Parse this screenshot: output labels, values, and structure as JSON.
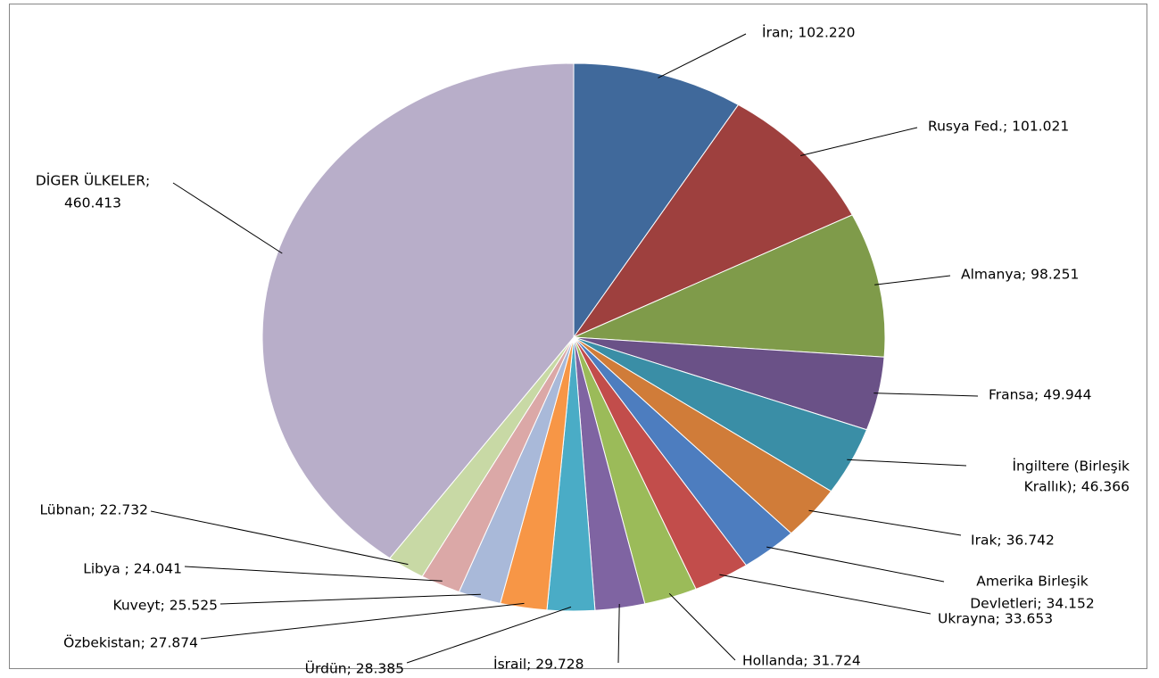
{
  "chart_data": {
    "type": "pie",
    "title": "",
    "slices": [
      {
        "name": "İran",
        "value": 102.22,
        "value_text": "102.220",
        "label": "İran; 102.220",
        "color": "#40699b"
      },
      {
        "name": "Rusya Fed.",
        "value": 101.021,
        "value_text": "101.021",
        "label": "Rusya Fed.; 101.021",
        "color": "#9e403e"
      },
      {
        "name": "Almanya",
        "value": 98.251,
        "value_text": "98.251",
        "label": "Almanya; 98.251",
        "color": "#7f9b4a"
      },
      {
        "name": "Fransa",
        "value": 49.944,
        "value_text": "49.944",
        "label": "Fransa; 49.944",
        "color": "#6a5187"
      },
      {
        "name": "İngiltere (Birleşik Krallık)",
        "value": 46.366,
        "value_text": "46.366",
        "label": [
          "İngiltere (Birleşik",
          "Krallık); 46.366"
        ],
        "color": "#3a8ea6"
      },
      {
        "name": "Irak",
        "value": 36.742,
        "value_text": "36.742",
        "label": "Irak; 36.742",
        "color": "#d07c39"
      },
      {
        "name": "Amerika Birleşik Devletleri",
        "value": 34.152,
        "value_text": "34.152",
        "label": [
          "Amerika Birleşik",
          "Devletleri; 34.152"
        ],
        "color": "#4d7dbf"
      },
      {
        "name": "Ukrayna",
        "value": 33.653,
        "value_text": "33.653",
        "label": "Ukrayna; 33.653",
        "color": "#c24d4b"
      },
      {
        "name": "Hollanda",
        "value": 31.724,
        "value_text": "31.724",
        "label": "Hollanda; 31.724",
        "color": "#9bbb59"
      },
      {
        "name": "İsrail",
        "value": 29.728,
        "value_text": "29.728",
        "label": "İsrail; 29.728",
        "color": "#7f64a2"
      },
      {
        "name": "Ürdün",
        "value": 28.385,
        "value_text": "28.385",
        "label": "Ürdün; 28.385",
        "color": "#4aacc6"
      },
      {
        "name": "Özbekistan",
        "value": 27.874,
        "value_text": "27.874",
        "label": "Özbekistan; 27.874",
        "color": "#f79646"
      },
      {
        "name": "Kuveyt",
        "value": 25.525,
        "value_text": "25.525",
        "label": "Kuveyt; 25.525",
        "color": "#a9b9d9"
      },
      {
        "name": "Libya",
        "value": 24.041,
        "value_text": "24.041",
        "label": "Libya ; 24.041",
        "color": "#dba8a7"
      },
      {
        "name": "Lübnan",
        "value": 22.732,
        "value_text": "22.732",
        "label": "Lübnan; 22.732",
        "color": "#c8d9a5"
      },
      {
        "name": "DİGER ÜLKELER",
        "value": 460.413,
        "value_text": "460.413",
        "label": [
          "DİGER ÜLKELER;",
          "460.413"
        ],
        "color": "#b8aec9"
      }
    ],
    "legend": "none",
    "data_labels": "outside with leader lines"
  }
}
